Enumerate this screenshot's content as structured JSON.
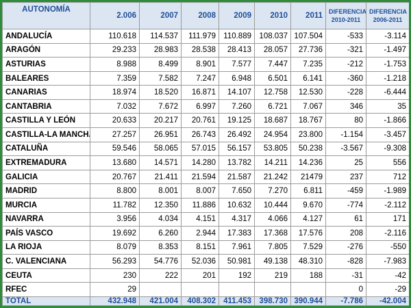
{
  "table": {
    "header": [
      "AUTONOMÍA",
      "2.006",
      "2007",
      "2008",
      "2009",
      "2010",
      "2011",
      {
        "top": "DIFERENCIA",
        "bottom": "2010-2011"
      },
      {
        "top": "DIFERENCIA",
        "bottom": "2006-2011"
      }
    ],
    "rows": [
      [
        "ANDALUCÍA",
        "110.618",
        "114.537",
        "111.979",
        "110.889",
        "108.037",
        "107.504",
        "-533",
        "-3.114"
      ],
      [
        "ARAGÓN",
        "29.233",
        "28.983",
        "28.538",
        "28.413",
        "28.057",
        "27.736",
        "-321",
        "-1.497"
      ],
      [
        "ASTURIAS",
        "8.988",
        "8.499",
        "8.901",
        "7.577",
        "7.447",
        "7.235",
        "-212",
        "-1.753"
      ],
      [
        "BALEARES",
        "7.359",
        "7.582",
        "7.247",
        "6.948",
        "6.501",
        "6.141",
        "-360",
        "-1.218"
      ],
      [
        "CANARIAS",
        "18.974",
        "18.520",
        "16.871",
        "14.107",
        "12.758",
        "12.530",
        "-228",
        "-6.444"
      ],
      [
        "CANTABRIA",
        "7.032",
        "7.672",
        "6.997",
        "7.260",
        "6.721",
        "7.067",
        "346",
        "35"
      ],
      [
        "CASTILLA Y LEÓN",
        "20.633",
        "20.217",
        "20.761",
        "19.125",
        "18.687",
        "18.767",
        "80",
        "-1.866"
      ],
      [
        "CASTILLA-LA MANCHA",
        "27.257",
        "26.951",
        "26.743",
        "26.492",
        "24.954",
        "23.800",
        "-1.154",
        "-3.457"
      ],
      [
        "CATALUÑA",
        "59.546",
        "58.065",
        "57.015",
        "56.157",
        "53.805",
        "50.238",
        "-3.567",
        "-9.308"
      ],
      [
        "EXTREMADURA",
        "13.680",
        "14.571",
        "14.280",
        "13.782",
        "14.211",
        "14.236",
        "25",
        "556"
      ],
      [
        "GALICIA",
        "20.767",
        "21.411",
        "21.594",
        "21.587",
        "21.242",
        "21479",
        "237",
        "712"
      ],
      [
        "MADRID",
        "8.800",
        "8.001",
        "8.007",
        "7.650",
        "7.270",
        "6.811",
        "-459",
        "-1.989"
      ],
      [
        "MURCIA",
        "11.782",
        "12.350",
        "11.886",
        "10.632",
        "10.444",
        "9.670",
        "-774",
        "-2.112"
      ],
      [
        "NAVARRA",
        "3.956",
        "4.034",
        "4.151",
        "4.317",
        "4.066",
        "4.127",
        "61",
        "171"
      ],
      [
        "PAÍS VASCO",
        "19.692",
        "6.260",
        "2.944",
        "17.383",
        "17.368",
        "17.576",
        "208",
        "-2.116"
      ],
      [
        "LA RIOJA",
        "8.079",
        "8.353",
        "8.151",
        "7.961",
        "7.805",
        "7.529",
        "-276",
        "-550"
      ],
      [
        "C. VALENCIANA",
        "56.293",
        "54.776",
        "52.036",
        "50.981",
        "49.138",
        "48.310",
        "-828",
        "-7.983"
      ],
      [
        "CEUTA",
        "230",
        "222",
        "201",
        "192",
        "219",
        "188",
        "-31",
        "-42"
      ],
      [
        "RFEC",
        "29",
        null,
        null,
        null,
        null,
        null,
        "0",
        "-29"
      ]
    ],
    "total": [
      "TOTAL",
      "432.948",
      "421.004",
      "408.302",
      "411.453",
      "398.730",
      "390.944",
      "-7.786",
      "-42.004"
    ]
  }
}
